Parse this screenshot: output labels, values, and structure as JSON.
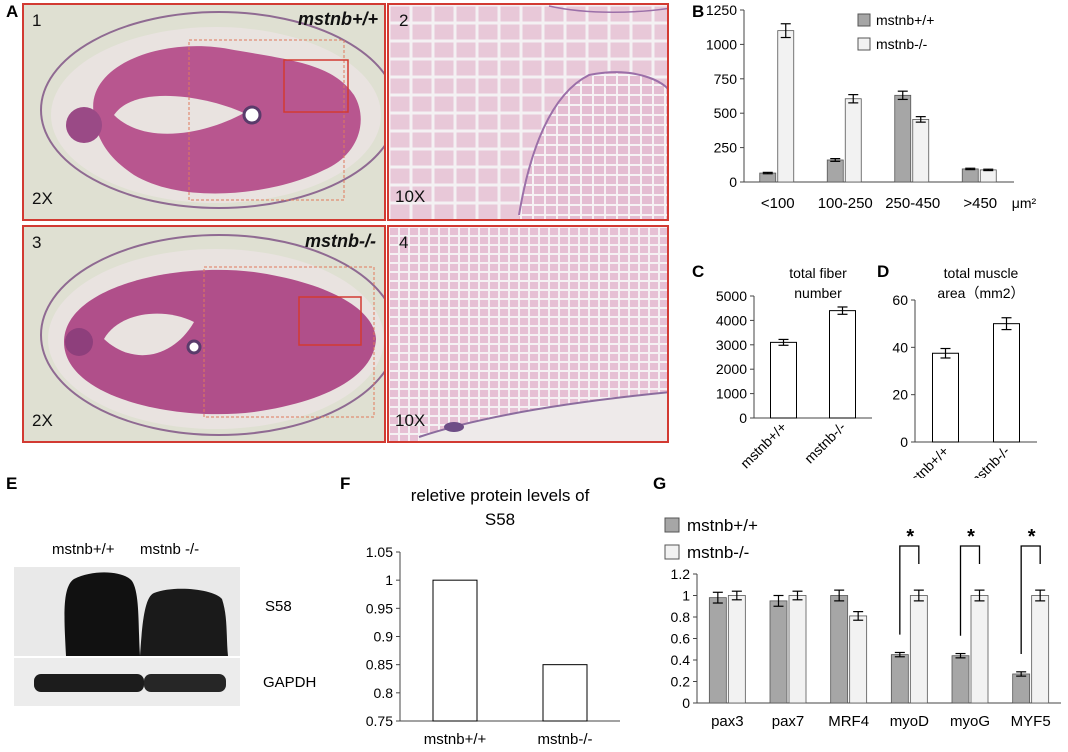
{
  "panel_labels": {
    "a": "A",
    "b": "B",
    "c": "C",
    "d": "D",
    "e": "E",
    "f": "F",
    "g": "G"
  },
  "micrographs": [
    {
      "num": "1",
      "mag": "2X",
      "genotype": "mstnb+/+"
    },
    {
      "num": "2",
      "mag": "10X",
      "genotype": ""
    },
    {
      "num": "3",
      "mag": "2X",
      "genotype": "mstnb-/-"
    },
    {
      "num": "4",
      "mag": "10X",
      "genotype": ""
    }
  ],
  "blot": {
    "lane_labels": [
      "mstnb+/+",
      "mstnb -/-"
    ],
    "band_labels": [
      "S58",
      "GAPDH"
    ]
  },
  "colors": {
    "wt": "#a6a6a6",
    "ko": "#f2f2f2",
    "frame": "#d23a32",
    "bar_outline": "#555555"
  },
  "chart_data": [
    {
      "id": "B",
      "type": "bar",
      "title": "",
      "categories": [
        "<100",
        "100-250",
        "250-450",
        ">450"
      ],
      "x_unit": "μm²",
      "series": [
        {
          "name": "mstnb+/+",
          "values": [
            65,
            160,
            630,
            95
          ]
        },
        {
          "name": "mstnb-/-",
          "values": [
            1100,
            605,
            455,
            88
          ]
        }
      ],
      "errors": [
        [
          5,
          10,
          30,
          5
        ],
        [
          50,
          30,
          20,
          5
        ]
      ],
      "ylim": [
        0,
        1250
      ],
      "yticks": [
        "0",
        "250",
        "500",
        "750",
        "1000",
        "1250"
      ],
      "legend": "top-right"
    },
    {
      "id": "C",
      "type": "bar",
      "title_lines": [
        "total fiber",
        "number"
      ],
      "categories": [
        "mstnb+/+",
        "mstnb-/-"
      ],
      "values": [
        3100,
        4400
      ],
      "errors": [
        120,
        150
      ],
      "ylim": [
        0,
        5000
      ],
      "yticks": [
        "0",
        "1000",
        "2000",
        "3000",
        "4000",
        "5000"
      ]
    },
    {
      "id": "D",
      "type": "bar",
      "title_lines": [
        "total muscle",
        "area（mm2）"
      ],
      "categories": [
        "mstnb+/+",
        "mstnb-/-"
      ],
      "values": [
        37.5,
        50
      ],
      "errors": [
        2,
        2.5
      ],
      "ylim": [
        0,
        60
      ],
      "yticks": [
        "0",
        "20",
        "40",
        "60"
      ]
    },
    {
      "id": "F",
      "type": "bar",
      "title_lines": [
        "reletive protein levels of",
        "S58"
      ],
      "categories": [
        "mstnb+/+",
        "mstnb-/-"
      ],
      "values": [
        1,
        0.85
      ],
      "ylim": [
        0.75,
        1.05
      ],
      "yticks": [
        "0.75",
        "0.8",
        "0.85",
        "0.9",
        "0.95",
        "1",
        "1.05"
      ]
    },
    {
      "id": "G",
      "type": "bar",
      "title": "",
      "categories": [
        "pax3",
        "pax7",
        "MRF4",
        "myoD",
        "myoG",
        "MYF5"
      ],
      "series": [
        {
          "name": "mstnb+/+",
          "values": [
            0.98,
            0.95,
            1.0,
            0.45,
            0.44,
            0.27
          ]
        },
        {
          "name": "mstnb-/-",
          "values": [
            1.0,
            1.0,
            0.81,
            1.0,
            1.0,
            1.0
          ]
        }
      ],
      "errors": [
        [
          0.05,
          0.05,
          0.05,
          0.02,
          0.02,
          0.02
        ],
        [
          0.04,
          0.04,
          0.04,
          0.05,
          0.05,
          0.05
        ]
      ],
      "ylim": [
        0,
        1.2
      ],
      "yticks": [
        "0",
        "0.2",
        "0.4",
        "0.6",
        "0.8",
        "1",
        "1.2"
      ],
      "significance": [
        "",
        "",
        "",
        "*",
        "*",
        "*"
      ],
      "legend": "top-left"
    }
  ]
}
